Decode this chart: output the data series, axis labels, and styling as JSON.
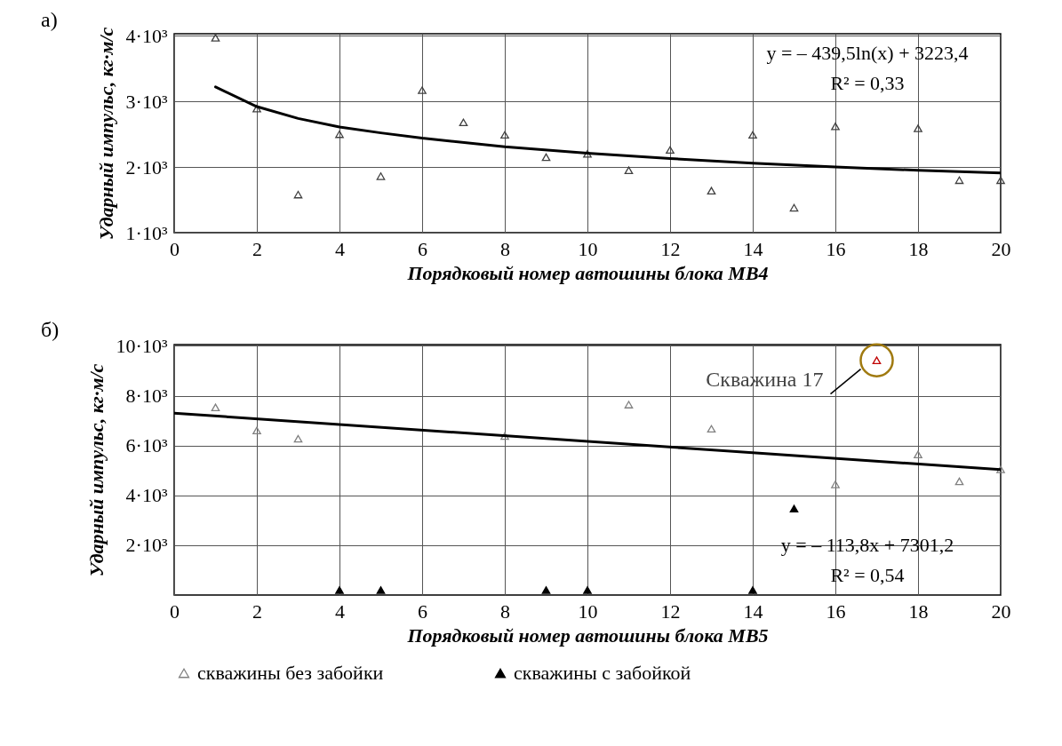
{
  "chart_data": [
    {
      "type": "scatter",
      "title": "а)",
      "xlabel": "Порядковый номер автошины блока МВ4",
      "ylabel": "Ударный импульс, кг·м/с",
      "xlim": [
        0,
        20
      ],
      "xticks": [
        0,
        2,
        4,
        6,
        8,
        10,
        12,
        14,
        16,
        18,
        20
      ],
      "ylim": [
        1000,
        4030
      ],
      "yticks": [
        {
          "value": 1000,
          "label": "1·10³"
        },
        {
          "value": 2000,
          "label": "2·10³"
        },
        {
          "value": 3000,
          "label": "3·10³"
        },
        {
          "value": 4000,
          "label": "4·10³"
        }
      ],
      "grid": true,
      "legend": false,
      "marker": "triangle",
      "series": [
        {
          "color": "#404040",
          "x": [
            1,
            2,
            3,
            4,
            5,
            6,
            7,
            8,
            9,
            10,
            11,
            12,
            13,
            14,
            15,
            16,
            18,
            19,
            20
          ],
          "values": [
            3970,
            2890,
            1580,
            2500,
            1860,
            3170,
            2680,
            2490,
            2150,
            2200,
            1950,
            2260,
            1640,
            2490,
            1380,
            2620,
            2590,
            1800,
            1800
          ]
        },
        {
          "type": "line",
          "color": "#000000",
          "marker": "none",
          "x": [
            1,
            2,
            3,
            4,
            5,
            6,
            8,
            10,
            12,
            14,
            16,
            18,
            20
          ],
          "values": [
            3220,
            2920,
            2740,
            2610,
            2520,
            2440,
            2310,
            2210,
            2130,
            2060,
            2000,
            1950,
            1910
          ]
        }
      ],
      "annotations": [
        "y = – 439,5ln(x) + 3223,4",
        "R² = 0,33"
      ]
    },
    {
      "type": "scatter",
      "title": "б)",
      "xlabel": "Порядковый номер автошины блока МВ5",
      "ylabel": "Ударный импульс, кг·м/с",
      "xlim": [
        0,
        20
      ],
      "xticks": [
        0,
        2,
        4,
        6,
        8,
        10,
        12,
        14,
        16,
        18,
        20
      ],
      "ylim": [
        0,
        10050
      ],
      "yticks": [
        {
          "value": 2000,
          "label": "2·10³"
        },
        {
          "value": 4000,
          "label": "4·10³"
        },
        {
          "value": 6000,
          "label": "6·10³"
        },
        {
          "value": 8000,
          "label": "8·10³"
        },
        {
          "value": 10000,
          "label": "10·10³"
        }
      ],
      "grid": true,
      "legend": "bottom",
      "marker": "triangle",
      "series": [
        {
          "name": "скважины без забойки",
          "color": "#808080",
          "x": [
            1,
            2,
            3,
            8,
            11,
            13,
            16,
            18,
            19,
            20
          ],
          "values": [
            7530,
            6600,
            6270,
            6380,
            7640,
            6670,
            4440,
            5640,
            4560,
            5040
          ]
        },
        {
          "name": "скважины с забойкой",
          "color": "#000000",
          "x": [
            4,
            5,
            9,
            10,
            14,
            15
          ],
          "values": [
            200,
            200,
            200,
            200,
            200,
            3470
          ]
        },
        {
          "color": "#c00000",
          "x": [
            17
          ],
          "values": [
            9420
          ]
        },
        {
          "type": "line",
          "color": "#000000",
          "marker": "none",
          "x": [
            0,
            20
          ],
          "values": [
            7300,
            5030
          ]
        }
      ],
      "annotations": [
        {
          "text": "Скважина 17",
          "x": 17,
          "y": 9420
        },
        "y = – 113,8x + 7301,2",
        "R² = 0,54"
      ]
    }
  ]
}
